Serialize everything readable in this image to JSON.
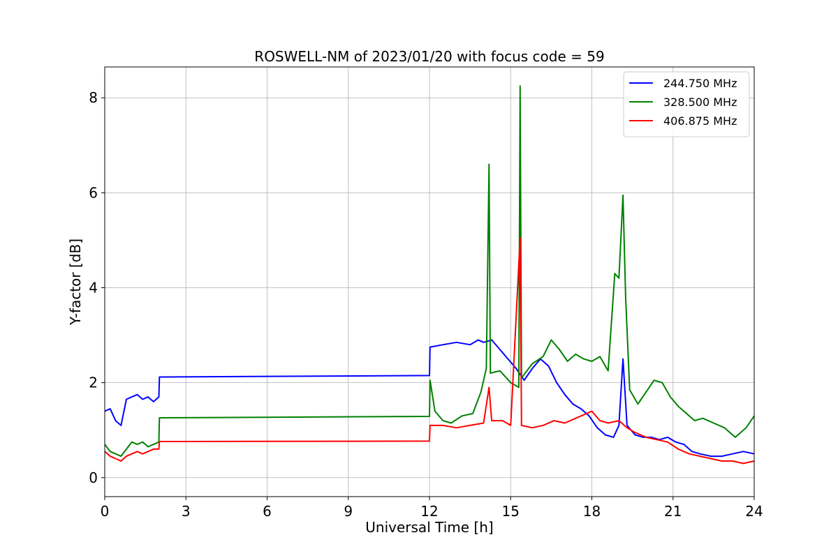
{
  "chart_data": {
    "type": "line",
    "title": "ROSWELL-NM of 2023/01/20 with focus code = 59",
    "xlabel": "Universal Time [h]",
    "ylabel": "Y-factor [dB]",
    "xlim": [
      0,
      24
    ],
    "ylim": [
      -0.4,
      8.65
    ],
    "xticks": [
      0,
      3,
      6,
      9,
      12,
      15,
      18,
      21,
      24
    ],
    "yticks": [
      0,
      2,
      4,
      6,
      8
    ],
    "grid": true,
    "legend_position": "upper right",
    "series": [
      {
        "name": "244.750 MHz",
        "color": "#0000ff",
        "points": [
          [
            0,
            1.4
          ],
          [
            0.2,
            1.45
          ],
          [
            0.4,
            1.2
          ],
          [
            0.6,
            1.1
          ],
          [
            0.8,
            1.65
          ],
          [
            1.0,
            1.7
          ],
          [
            1.2,
            1.75
          ],
          [
            1.4,
            1.65
          ],
          [
            1.6,
            1.7
          ],
          [
            1.8,
            1.6
          ],
          [
            2.0,
            1.7
          ],
          [
            2.02,
            2.12
          ],
          [
            12.0,
            2.15
          ],
          [
            12.02,
            2.75
          ],
          [
            12.5,
            2.8
          ],
          [
            13.0,
            2.85
          ],
          [
            13.5,
            2.8
          ],
          [
            13.8,
            2.9
          ],
          [
            14.0,
            2.85
          ],
          [
            14.3,
            2.9
          ],
          [
            14.6,
            2.7
          ],
          [
            14.9,
            2.5
          ],
          [
            15.2,
            2.3
          ],
          [
            15.5,
            2.05
          ],
          [
            15.8,
            2.3
          ],
          [
            16.1,
            2.5
          ],
          [
            16.4,
            2.35
          ],
          [
            16.7,
            2.0
          ],
          [
            17.0,
            1.75
          ],
          [
            17.3,
            1.55
          ],
          [
            17.6,
            1.45
          ],
          [
            17.9,
            1.3
          ],
          [
            18.2,
            1.05
          ],
          [
            18.5,
            0.9
          ],
          [
            18.8,
            0.85
          ],
          [
            19.0,
            1.1
          ],
          [
            19.15,
            2.5
          ],
          [
            19.3,
            1.1
          ],
          [
            19.6,
            0.9
          ],
          [
            19.9,
            0.85
          ],
          [
            20.2,
            0.85
          ],
          [
            20.5,
            0.8
          ],
          [
            20.8,
            0.85
          ],
          [
            21.1,
            0.75
          ],
          [
            21.4,
            0.7
          ],
          [
            21.7,
            0.55
          ],
          [
            22.0,
            0.5
          ],
          [
            22.4,
            0.45
          ],
          [
            22.8,
            0.45
          ],
          [
            23.2,
            0.5
          ],
          [
            23.6,
            0.55
          ],
          [
            24.0,
            0.5
          ]
        ]
      },
      {
        "name": "328.500 MHz",
        "color": "#008000",
        "points": [
          [
            0,
            0.7
          ],
          [
            0.2,
            0.55
          ],
          [
            0.4,
            0.5
          ],
          [
            0.6,
            0.45
          ],
          [
            0.8,
            0.6
          ],
          [
            1.0,
            0.75
          ],
          [
            1.2,
            0.7
          ],
          [
            1.4,
            0.75
          ],
          [
            1.6,
            0.65
          ],
          [
            1.8,
            0.7
          ],
          [
            2.0,
            0.75
          ],
          [
            2.02,
            1.26
          ],
          [
            12.0,
            1.29
          ],
          [
            12.02,
            2.05
          ],
          [
            12.2,
            1.4
          ],
          [
            12.5,
            1.2
          ],
          [
            12.8,
            1.15
          ],
          [
            13.2,
            1.3
          ],
          [
            13.6,
            1.35
          ],
          [
            13.9,
            1.8
          ],
          [
            14.1,
            2.3
          ],
          [
            14.2,
            6.6
          ],
          [
            14.25,
            2.2
          ],
          [
            14.6,
            2.25
          ],
          [
            15.0,
            2.0
          ],
          [
            15.3,
            1.9
          ],
          [
            15.35,
            8.25
          ],
          [
            15.4,
            2.1
          ],
          [
            15.8,
            2.4
          ],
          [
            16.2,
            2.55
          ],
          [
            16.5,
            2.9
          ],
          [
            16.8,
            2.7
          ],
          [
            17.1,
            2.45
          ],
          [
            17.4,
            2.6
          ],
          [
            17.7,
            2.5
          ],
          [
            18.0,
            2.45
          ],
          [
            18.3,
            2.55
          ],
          [
            18.6,
            2.25
          ],
          [
            18.85,
            4.3
          ],
          [
            19.0,
            4.2
          ],
          [
            19.15,
            5.95
          ],
          [
            19.25,
            3.8
          ],
          [
            19.4,
            1.85
          ],
          [
            19.7,
            1.55
          ],
          [
            20.0,
            1.8
          ],
          [
            20.3,
            2.05
          ],
          [
            20.6,
            2.0
          ],
          [
            20.9,
            1.7
          ],
          [
            21.2,
            1.5
          ],
          [
            21.5,
            1.35
          ],
          [
            21.8,
            1.2
          ],
          [
            22.1,
            1.25
          ],
          [
            22.5,
            1.15
          ],
          [
            22.9,
            1.05
          ],
          [
            23.3,
            0.85
          ],
          [
            23.7,
            1.05
          ],
          [
            24.0,
            1.3
          ]
        ]
      },
      {
        "name": "406.875 MHz",
        "color": "#ff0000",
        "points": [
          [
            0,
            0.55
          ],
          [
            0.2,
            0.45
          ],
          [
            0.4,
            0.4
          ],
          [
            0.6,
            0.35
          ],
          [
            0.8,
            0.45
          ],
          [
            1.0,
            0.5
          ],
          [
            1.2,
            0.55
          ],
          [
            1.4,
            0.5
          ],
          [
            1.6,
            0.55
          ],
          [
            1.8,
            0.6
          ],
          [
            2.0,
            0.6
          ],
          [
            2.02,
            0.76
          ],
          [
            12.0,
            0.77
          ],
          [
            12.02,
            1.1
          ],
          [
            12.5,
            1.1
          ],
          [
            13.0,
            1.05
          ],
          [
            13.5,
            1.1
          ],
          [
            14.0,
            1.15
          ],
          [
            14.2,
            1.9
          ],
          [
            14.3,
            1.2
          ],
          [
            14.7,
            1.2
          ],
          [
            15.0,
            1.1
          ],
          [
            15.35,
            5.05
          ],
          [
            15.4,
            1.1
          ],
          [
            15.8,
            1.05
          ],
          [
            16.2,
            1.1
          ],
          [
            16.6,
            1.2
          ],
          [
            17.0,
            1.15
          ],
          [
            17.4,
            1.25
          ],
          [
            17.8,
            1.35
          ],
          [
            18.0,
            1.4
          ],
          [
            18.3,
            1.2
          ],
          [
            18.6,
            1.15
          ],
          [
            19.0,
            1.2
          ],
          [
            19.3,
            1.05
          ],
          [
            19.6,
            0.95
          ],
          [
            20.0,
            0.85
          ],
          [
            20.4,
            0.8
          ],
          [
            20.8,
            0.75
          ],
          [
            21.2,
            0.6
          ],
          [
            21.6,
            0.5
          ],
          [
            22.0,
            0.45
          ],
          [
            22.4,
            0.4
          ],
          [
            22.8,
            0.35
          ],
          [
            23.2,
            0.35
          ],
          [
            23.6,
            0.3
          ],
          [
            24.0,
            0.35
          ]
        ]
      }
    ]
  }
}
